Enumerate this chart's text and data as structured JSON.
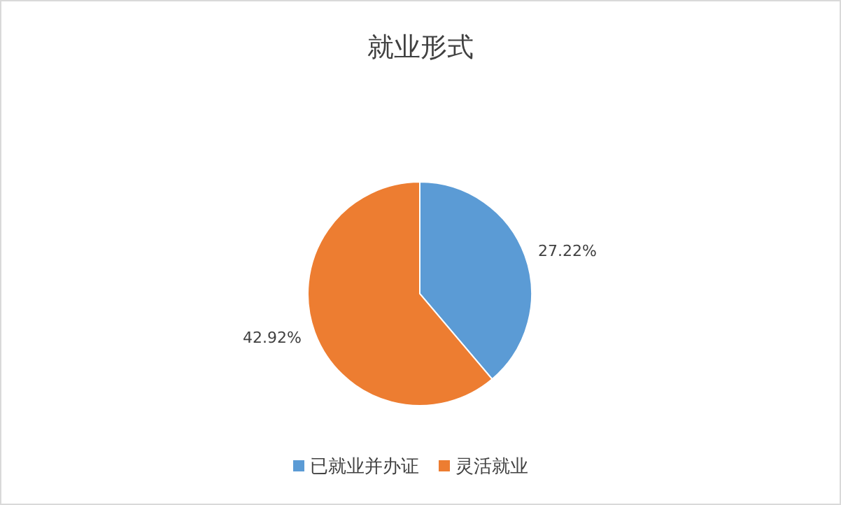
{
  "chart_data": {
    "type": "pie",
    "title": "就业形式",
    "categories": [
      "已就业并办证",
      "灵活就业"
    ],
    "values": [
      27.22,
      42.92
    ],
    "colors": [
      "#5b9bd5",
      "#ed7d31"
    ],
    "value_labels": [
      "27.22%",
      "42.92%"
    ],
    "legend": "bottom"
  }
}
